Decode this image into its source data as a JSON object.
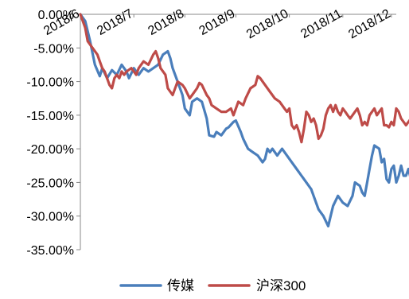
{
  "chart_data": {
    "type": "line",
    "title": "",
    "xlabel": "",
    "ylabel": "",
    "ylim": [
      -35,
      0
    ],
    "yticks": [
      0,
      -5,
      -10,
      -15,
      -20,
      -25,
      -30,
      -35
    ],
    "ytick_labels": [
      "0.00%",
      "-5.00%",
      "-10.00%",
      "-15.00%",
      "-20.00%",
      "-25.00%",
      "-30.00%",
      "-35.00%"
    ],
    "x_tick_labels": [
      "2018/6",
      "2018/7",
      "2018/8",
      "2018/9",
      "2018/10",
      "2018/11",
      "2018/12"
    ],
    "x_tick_positions": [
      0,
      22,
      43,
      64,
      86,
      108,
      128
    ],
    "n_points": 131,
    "grid": false,
    "legend_position": "bottom",
    "series": [
      {
        "name": "传媒",
        "color": "#4a7ebb",
        "points": [
          [
            0,
            0
          ],
          [
            2,
            -1
          ],
          [
            4,
            -4
          ],
          [
            6,
            -7.5
          ],
          [
            8,
            -9.2
          ],
          [
            9,
            -8
          ],
          [
            11,
            -9.5
          ],
          [
            13,
            -8.3
          ],
          [
            15,
            -9
          ],
          [
            17,
            -7.5
          ],
          [
            19,
            -8.5
          ],
          [
            20,
            -9.5
          ],
          [
            22,
            -8
          ],
          [
            24,
            -9
          ],
          [
            26,
            -8
          ],
          [
            28,
            -8.5
          ],
          [
            30,
            -8
          ],
          [
            32,
            -7.5
          ],
          [
            34,
            -6
          ],
          [
            36,
            -5.5
          ],
          [
            37,
            -6.5
          ],
          [
            38,
            -8
          ],
          [
            40,
            -10
          ],
          [
            42,
            -12
          ],
          [
            43,
            -14
          ],
          [
            45,
            -15
          ],
          [
            46,
            -13
          ],
          [
            48,
            -12.5
          ],
          [
            50,
            -13
          ],
          [
            52,
            -15.5
          ],
          [
            53,
            -18
          ],
          [
            55,
            -18.2
          ],
          [
            56,
            -17.5
          ],
          [
            58,
            -18
          ],
          [
            60,
            -17
          ],
          [
            61,
            -16.8
          ],
          [
            63,
            -16
          ],
          [
            64,
            -15.8
          ],
          [
            66,
            -17.5
          ],
          [
            67,
            -18.5
          ],
          [
            69,
            -20
          ],
          [
            71,
            -20.5
          ],
          [
            73,
            -21
          ],
          [
            75,
            -22
          ],
          [
            76,
            -21.5
          ],
          [
            77,
            -20
          ],
          [
            78,
            -20.5
          ],
          [
            79,
            -20
          ],
          [
            81,
            -21
          ],
          [
            83,
            -20
          ],
          [
            85,
            -21
          ],
          [
            87,
            -22
          ],
          [
            89,
            -23
          ],
          [
            91,
            -24
          ],
          [
            93,
            -25
          ],
          [
            95,
            -26
          ],
          [
            97,
            -28
          ],
          [
            98,
            -29
          ],
          [
            100,
            -30
          ],
          [
            102,
            -31.5
          ],
          [
            103,
            -30
          ],
          [
            104,
            -28.5
          ],
          [
            106,
            -27
          ],
          [
            108,
            -28
          ],
          [
            110,
            -28.5
          ],
          [
            112,
            -27
          ],
          [
            113,
            -25
          ],
          [
            115,
            -25.5
          ],
          [
            116,
            -26.5
          ],
          [
            117,
            -27
          ],
          [
            118,
            -25
          ],
          [
            119,
            -23
          ],
          [
            120,
            -21
          ],
          [
            121,
            -19.5
          ],
          [
            123,
            -20
          ],
          [
            124,
            -22
          ],
          [
            125,
            -21.5
          ],
          [
            126,
            -24.5
          ],
          [
            127,
            -25
          ],
          [
            128,
            -23
          ],
          [
            129,
            -22.5
          ],
          [
            130,
            -25
          ],
          [
            131,
            -24
          ],
          [
            132,
            -22.5
          ],
          [
            133,
            -24
          ],
          [
            134,
            -24
          ],
          [
            135,
            -23
          ],
          [
            136,
            -24.5
          ],
          [
            137,
            -24.5
          ],
          [
            138,
            -23
          ],
          [
            139,
            -24.5
          ],
          [
            140,
            -24
          ],
          [
            141,
            -25
          ]
        ]
      },
      {
        "name": "沪深300",
        "color": "#be4b48",
        "points": [
          [
            0,
            0
          ],
          [
            2,
            -2
          ],
          [
            3,
            -4
          ],
          [
            5,
            -5
          ],
          [
            7,
            -6
          ],
          [
            8,
            -7
          ],
          [
            9,
            -8
          ],
          [
            10,
            -8.5
          ],
          [
            12,
            -10.5
          ],
          [
            13,
            -11
          ],
          [
            14,
            -9.5
          ],
          [
            15,
            -9
          ],
          [
            16,
            -9.5
          ],
          [
            17,
            -8.5
          ],
          [
            18,
            -9
          ],
          [
            19,
            -8.5
          ],
          [
            21,
            -8
          ],
          [
            22,
            -8.5
          ],
          [
            23,
            -9
          ],
          [
            24,
            -8
          ],
          [
            26,
            -7
          ],
          [
            28,
            -7.5
          ],
          [
            30,
            -6
          ],
          [
            31,
            -5.5
          ],
          [
            32,
            -6.5
          ],
          [
            33,
            -8
          ],
          [
            35,
            -9
          ],
          [
            36,
            -11
          ],
          [
            38,
            -12
          ],
          [
            39,
            -11
          ],
          [
            40,
            -10
          ],
          [
            42,
            -10.5
          ],
          [
            43,
            -11
          ],
          [
            45,
            -12.5
          ],
          [
            46,
            -12
          ],
          [
            48,
            -11
          ],
          [
            49,
            -10.2
          ],
          [
            50,
            -10.5
          ],
          [
            52,
            -12
          ],
          [
            53,
            -12.5
          ],
          [
            54,
            -13.5
          ],
          [
            56,
            -14
          ],
          [
            58,
            -14.5
          ],
          [
            60,
            -14.5
          ],
          [
            62,
            -14
          ],
          [
            63,
            -15
          ],
          [
            65,
            -13
          ],
          [
            67,
            -13.5
          ],
          [
            68,
            -12.5
          ],
          [
            70,
            -11
          ],
          [
            72,
            -10.5
          ],
          [
            73,
            -9.2
          ],
          [
            74,
            -9.5
          ],
          [
            76,
            -10.5
          ],
          [
            78,
            -11.5
          ],
          [
            80,
            -12.5
          ],
          [
            82,
            -13
          ],
          [
            84,
            -14
          ],
          [
            85,
            -14.5
          ],
          [
            86,
            -14
          ],
          [
            87,
            -16.5
          ],
          [
            88,
            -17
          ],
          [
            89,
            -16.5
          ],
          [
            90,
            -17.5
          ],
          [
            91,
            -19
          ],
          [
            92,
            -17
          ],
          [
            93,
            -14.5
          ],
          [
            94,
            -15
          ],
          [
            95,
            -16
          ],
          [
            96,
            -15.5
          ],
          [
            97,
            -16.5
          ],
          [
            98,
            -18.5
          ],
          [
            99,
            -18
          ],
          [
            100,
            -17
          ],
          [
            101,
            -15
          ],
          [
            102,
            -14
          ],
          [
            103,
            -13.5
          ],
          [
            104,
            -14.5
          ],
          [
            105,
            -13.5
          ],
          [
            106,
            -14.5
          ],
          [
            107,
            -15
          ],
          [
            108,
            -14
          ],
          [
            109,
            -14.5
          ],
          [
            110,
            -15
          ],
          [
            111,
            -15.5
          ],
          [
            112,
            -15
          ],
          [
            113,
            -14.5
          ],
          [
            114,
            -14
          ],
          [
            115,
            -15
          ],
          [
            116,
            -16.5
          ],
          [
            117,
            -16
          ],
          [
            118,
            -16.5
          ],
          [
            119,
            -15
          ],
          [
            120,
            -14.5
          ],
          [
            121,
            -14
          ],
          [
            122,
            -15
          ],
          [
            123,
            -14.5
          ],
          [
            124,
            -14
          ],
          [
            125,
            -16.5
          ],
          [
            126,
            -16.5
          ],
          [
            127,
            -16.8
          ],
          [
            128,
            -16
          ],
          [
            129,
            -16.5
          ],
          [
            130,
            -14
          ],
          [
            131,
            -14.5
          ],
          [
            132,
            -15.5
          ],
          [
            133,
            -16
          ],
          [
            134,
            -16.5
          ],
          [
            135,
            -16
          ],
          [
            136,
            -15.5
          ],
          [
            137,
            -16.5
          ],
          [
            138,
            -16
          ],
          [
            139,
            -15
          ],
          [
            140,
            -16.5
          ]
        ]
      }
    ]
  }
}
